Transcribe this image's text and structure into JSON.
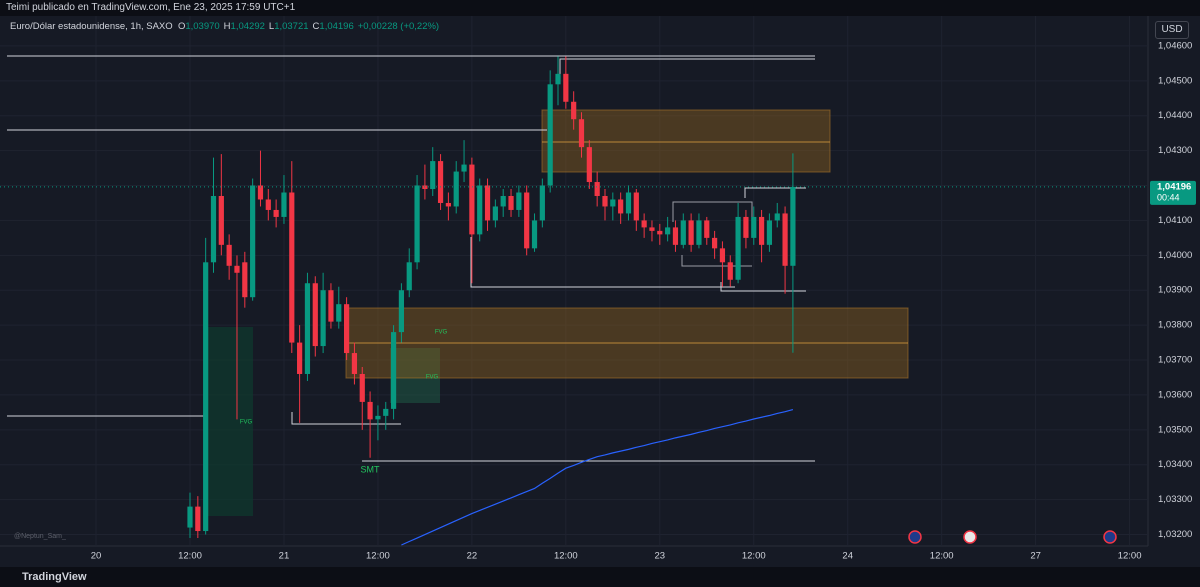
{
  "header": {
    "published": "Teimi publicado en TradingView.com, Ene 23, 2025 17:59 UTC+1",
    "symbol": "Euro/Dólar estadounidense, 1h, SAXO",
    "ohlc": [
      {
        "label": "O",
        "value": "1,03970"
      },
      {
        "label": "H",
        "value": "1,04292"
      },
      {
        "label": "L",
        "value": "1,03721"
      },
      {
        "label": "C",
        "value": "1,04196"
      }
    ],
    "change": "+0,00228 (+0,22%)",
    "currency": "USD",
    "watermark": "@Neptun_Sam_",
    "brand": "TradingView"
  },
  "chart_data": {
    "type": "candlestick",
    "up_color": "#089981",
    "down_color": "#f23645",
    "grid": true,
    "categories": [
      "12:00",
      null,
      null,
      null,
      null,
      null,
      null,
      null,
      null,
      null,
      null,
      null,
      "21",
      null,
      null,
      null,
      null,
      null,
      null,
      null,
      null,
      null,
      null,
      null,
      "12:00",
      null,
      null,
      null,
      null,
      null,
      null,
      null,
      null,
      null,
      null,
      null,
      "22",
      null,
      null,
      null,
      null,
      null,
      null,
      null,
      null,
      null,
      null,
      null,
      "12:00",
      null,
      null,
      null,
      null,
      null,
      null,
      null,
      null,
      null,
      null,
      null,
      "23",
      null,
      null,
      null,
      null,
      null,
      null,
      null,
      null,
      null,
      null,
      null,
      "12:00",
      null,
      null,
      null,
      null,
      null
    ],
    "leading_axis_labels": [
      "20"
    ],
    "trailing_axis_labels": [
      "24",
      "12:00",
      "27",
      "12:00"
    ],
    "open": [
      1.0322,
      1.0328,
      1.0321,
      1.0398,
      1.0417,
      1.0403,
      1.0397,
      1.0398,
      1.0388,
      1.042,
      1.0416,
      1.0413,
      1.0411,
      1.0418,
      1.0375,
      1.0366,
      1.0392,
      1.0374,
      1.039,
      1.0381,
      1.0386,
      1.0372,
      1.0366,
      1.0358,
      1.0353,
      1.0354,
      1.0356,
      1.0378,
      1.039,
      1.0398,
      1.042,
      1.0419,
      1.0427,
      1.0415,
      1.0414,
      1.0424,
      1.0426,
      1.0406,
      1.042,
      1.041,
      1.0414,
      1.0417,
      1.0413,
      1.0418,
      1.0402,
      1.041,
      1.042,
      1.0449,
      1.0452,
      1.0444,
      1.0439,
      1.0431,
      1.0421,
      1.0417,
      1.0414,
      1.0416,
      1.0412,
      1.0418,
      1.041,
      1.0408,
      1.0407,
      1.0406,
      1.0408,
      1.0403,
      1.041,
      1.0403,
      1.041,
      1.0405,
      1.0402,
      1.0398,
      1.0393,
      1.0411,
      1.0405,
      1.0411,
      1.0403,
      1.041,
      1.0412,
      1.0397
    ],
    "high": [
      1.0332,
      1.0331,
      1.0405,
      1.0428,
      1.0429,
      1.0406,
      1.04,
      1.0401,
      1.0422,
      1.043,
      1.0419,
      1.0416,
      1.0423,
      1.0427,
      1.038,
      1.0395,
      1.0394,
      1.0395,
      1.0392,
      1.0391,
      1.0388,
      1.0375,
      1.0368,
      1.0361,
      1.0357,
      1.0358,
      1.038,
      1.0392,
      1.0402,
      1.0423,
      1.0426,
      1.0431,
      1.0429,
      1.0418,
      1.0427,
      1.0433,
      1.0428,
      1.0422,
      1.0422,
      1.0416,
      1.0419,
      1.0419,
      1.042,
      1.042,
      1.0412,
      1.0422,
      1.0453,
      1.0457,
      1.0457,
      1.0447,
      1.0441,
      1.0433,
      1.0424,
      1.0419,
      1.0418,
      1.0418,
      1.042,
      1.0419,
      1.0412,
      1.041,
      1.0409,
      1.0411,
      1.041,
      1.0412,
      1.0412,
      1.0412,
      1.0411,
      1.0407,
      1.0404,
      1.04,
      1.0415,
      1.0413,
      1.0414,
      1.0413,
      1.0412,
      1.0415,
      1.0414,
      1.04292
    ],
    "low": [
      1.0319,
      1.0319,
      1.032,
      1.0395,
      1.04,
      1.0393,
      1.0353,
      1.0385,
      1.0387,
      1.0414,
      1.041,
      1.0408,
      1.0409,
      1.0372,
      1.0352,
      1.0364,
      1.0371,
      1.0372,
      1.0379,
      1.0379,
      1.037,
      1.0363,
      1.035,
      1.0342,
      1.0347,
      1.035,
      1.0353,
      1.0375,
      1.0388,
      1.0396,
      1.0416,
      1.0417,
      1.0413,
      1.041,
      1.0412,
      1.0421,
      1.0392,
      1.0404,
      1.0407,
      1.0408,
      1.0411,
      1.0411,
      1.0411,
      1.04,
      1.0401,
      1.0408,
      1.0418,
      1.0443,
      1.0442,
      1.0436,
      1.0428,
      1.0419,
      1.0414,
      1.041,
      1.041,
      1.0409,
      1.041,
      1.0407,
      1.0405,
      1.0404,
      1.0403,
      1.0404,
      1.0401,
      1.0402,
      1.0401,
      1.0402,
      1.0403,
      1.0399,
      1.0391,
      1.0391,
      1.0392,
      1.0402,
      1.0403,
      1.0398,
      1.0401,
      1.0408,
      1.0389,
      1.03721
    ],
    "close": [
      1.0328,
      1.0321,
      1.0398,
      1.0417,
      1.0403,
      1.0397,
      1.0395,
      1.0388,
      1.042,
      1.0416,
      1.0413,
      1.0411,
      1.0418,
      1.0375,
      1.0366,
      1.0392,
      1.0374,
      1.039,
      1.0381,
      1.0386,
      1.0372,
      1.0366,
      1.0358,
      1.0353,
      1.0354,
      1.0356,
      1.0378,
      1.039,
      1.0398,
      1.042,
      1.0419,
      1.0427,
      1.0415,
      1.0414,
      1.0424,
      1.0426,
      1.0406,
      1.042,
      1.041,
      1.0414,
      1.0417,
      1.0413,
      1.0418,
      1.0402,
      1.041,
      1.042,
      1.0449,
      1.0452,
      1.0444,
      1.0439,
      1.0431,
      1.0421,
      1.0417,
      1.0414,
      1.0416,
      1.0412,
      1.0418,
      1.041,
      1.0408,
      1.0407,
      1.0406,
      1.0408,
      1.0403,
      1.041,
      1.0403,
      1.041,
      1.0405,
      1.0402,
      1.0398,
      1.0393,
      1.0411,
      1.0405,
      1.0411,
      1.0403,
      1.041,
      1.0412,
      1.0397,
      1.04196
    ],
    "overlay": {
      "type": "line",
      "color": "#2962ff",
      "values": [
        null,
        null,
        null,
        null,
        null,
        null,
        null,
        null,
        null,
        null,
        null,
        null,
        null,
        null,
        null,
        null,
        null,
        null,
        null,
        null,
        null,
        null,
        null,
        null,
        null,
        null,
        null,
        1.0317,
        1.0318,
        1.0319,
        1.032,
        1.0321,
        1.0322,
        1.0323,
        1.0324,
        1.0325,
        1.0326,
        1.03269,
        1.03278,
        1.03287,
        1.03296,
        1.03305,
        1.03314,
        1.03323,
        1.03332,
        1.03347,
        1.03361,
        1.03376,
        1.0339,
        1.03398,
        1.03407,
        1.03415,
        1.03423,
        1.03428,
        1.03434,
        1.03439,
        1.03444,
        1.0345,
        1.03455,
        1.03461,
        1.03466,
        1.03471,
        1.03477,
        1.03482,
        1.03487,
        1.03493,
        1.03498,
        1.03504,
        1.03509,
        1.03514,
        1.0352,
        1.03525,
        1.03531,
        1.03536,
        1.03541,
        1.03547,
        1.03552,
        1.03558
      ]
    },
    "last_price": {
      "value": 1.04196,
      "label": "1,04196",
      "countdown": "00:44"
    },
    "annotations": [
      "FVG",
      "FVG",
      "FVG",
      "SMT"
    ],
    "ylim": [
      1.0317,
      1.0468
    ],
    "yticks": [
      {
        "value": 1.032,
        "label": "1,03200"
      },
      {
        "value": 1.033,
        "label": "1,03300"
      },
      {
        "value": 1.034,
        "label": "1,03400"
      },
      {
        "value": 1.035,
        "label": "1,03500"
      },
      {
        "value": 1.036,
        "label": "1,03600"
      },
      {
        "value": 1.037,
        "label": "1,03700"
      },
      {
        "value": 1.038,
        "label": "1,03800"
      },
      {
        "value": 1.039,
        "label": "1,03900"
      },
      {
        "value": 1.04,
        "label": "1,04000"
      },
      {
        "value": 1.041,
        "label": "1,04100"
      },
      {
        "value": 1.042,
        "label": "1,04200"
      },
      {
        "value": 1.043,
        "label": "1,04300"
      },
      {
        "value": 1.044,
        "label": "1,04400"
      },
      {
        "value": 1.045,
        "label": "1,04500"
      },
      {
        "value": 1.046,
        "label": "1,04600"
      }
    ]
  }
}
